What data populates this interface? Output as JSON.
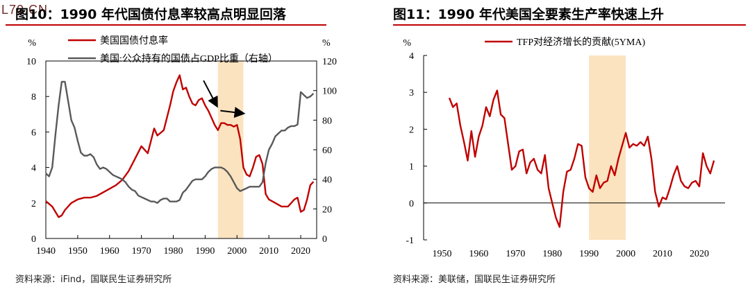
{
  "watermark": "L70.CN",
  "left_panel": {
    "title": "图10：1990 年代国债付息率较高点明显回落",
    "source": "资料来源：iFind，国联民生证券研究所"
  },
  "right_panel": {
    "title": "图11：1990 年代美国全要素生产率快速上升",
    "source": "资料来源：美联储，国联民生证券研究所"
  },
  "colors": {
    "red": "#c00000",
    "gray": "#595959",
    "band": "#fbe3c0",
    "rule": "#c00000"
  },
  "chart_data": [
    {
      "type": "line",
      "title": "",
      "x_range": [
        1940,
        2025
      ],
      "x_ticks": [
        "1940",
        "1950",
        "1960",
        "1970",
        "1980",
        "1990",
        "2000",
        "2010",
        "2020"
      ],
      "y_left_label": "%",
      "y_left_range": [
        0,
        10
      ],
      "y_left_ticks": [
        "0",
        "2",
        "4",
        "6",
        "8",
        "10"
      ],
      "y_right_label": "%",
      "y_right_range": [
        0,
        120
      ],
      "y_right_ticks": [
        "0",
        "20",
        "40",
        "60",
        "80",
        "100",
        "120"
      ],
      "highlight_range": [
        1994,
        2002
      ],
      "legend_position": "top-center",
      "series": [
        {
          "name": "美国国债付息率",
          "axis": "left",
          "color": "#c00000",
          "x": [
            1940,
            1942,
            1944,
            1945,
            1946,
            1948,
            1950,
            1952,
            1954,
            1956,
            1958,
            1960,
            1962,
            1964,
            1966,
            1968,
            1970,
            1972,
            1974,
            1975,
            1977,
            1979,
            1980,
            1981,
            1982,
            1983,
            1984,
            1985,
            1986,
            1987,
            1988,
            1989,
            1990,
            1991,
            1992,
            1993,
            1994,
            1995,
            1996,
            1997,
            1998,
            1999,
            2000,
            2001,
            2002,
            2003,
            2004,
            2005,
            2006,
            2007,
            2008,
            2009,
            2010,
            2012,
            2014,
            2016,
            2018,
            2019,
            2020,
            2021,
            2022,
            2023,
            2024
          ],
          "y": [
            2.1,
            1.8,
            1.2,
            1.3,
            1.6,
            2.0,
            2.2,
            2.3,
            2.3,
            2.4,
            2.6,
            2.8,
            3.0,
            3.3,
            3.8,
            4.5,
            5.2,
            4.8,
            6.2,
            5.8,
            6.1,
            7.5,
            8.3,
            8.8,
            9.2,
            8.4,
            8.5,
            8.0,
            7.6,
            7.5,
            7.8,
            7.9,
            7.5,
            7.2,
            6.8,
            6.4,
            6.1,
            6.5,
            6.5,
            6.4,
            6.4,
            6.3,
            6.4,
            5.6,
            4.0,
            3.6,
            3.5,
            4.0,
            4.6,
            4.7,
            4.2,
            2.5,
            2.2,
            2.0,
            1.8,
            1.8,
            2.2,
            2.3,
            1.5,
            1.6,
            2.2,
            3.0,
            3.2
          ]
        },
        {
          "name": "美国:公众持有的国债占GDP比重（右轴）",
          "axis": "right",
          "color": "#595959",
          "x": [
            1940,
            1941,
            1942,
            1943,
            1944,
            1945,
            1946,
            1947,
            1948,
            1949,
            1950,
            1951,
            1952,
            1953,
            1954,
            1955,
            1956,
            1957,
            1958,
            1959,
            1960,
            1961,
            1962,
            1963,
            1964,
            1965,
            1966,
            1967,
            1968,
            1969,
            1970,
            1971,
            1972,
            1973,
            1974,
            1975,
            1976,
            1977,
            1978,
            1979,
            1980,
            1981,
            1982,
            1983,
            1984,
            1985,
            1986,
            1987,
            1988,
            1989,
            1990,
            1991,
            1992,
            1993,
            1994,
            1995,
            1996,
            1997,
            1998,
            1999,
            2000,
            2001,
            2002,
            2003,
            2004,
            2005,
            2006,
            2007,
            2008,
            2009,
            2010,
            2011,
            2012,
            2013,
            2014,
            2015,
            2016,
            2017,
            2018,
            2019,
            2020,
            2021,
            2022,
            2023,
            2024
          ],
          "y": [
            44,
            42,
            48,
            70,
            90,
            106,
            106,
            93,
            80,
            75,
            66,
            58,
            56,
            56,
            57,
            55,
            50,
            47,
            48,
            47,
            45,
            43,
            42,
            41,
            40,
            38,
            35,
            33,
            32,
            29,
            28,
            27,
            26,
            25,
            25,
            24,
            26,
            27,
            27,
            25,
            25,
            25,
            26,
            31,
            33,
            36,
            39,
            40,
            40,
            40,
            42,
            45,
            47,
            48,
            48,
            48,
            47,
            45,
            42,
            38,
            34,
            32,
            33,
            34,
            35,
            35,
            35,
            35,
            38,
            51,
            60,
            64,
            69,
            71,
            73,
            73,
            75,
            76,
            76,
            77,
            99,
            97,
            95,
            96,
            98
          ]
        }
      ]
    },
    {
      "type": "line",
      "title": "",
      "x_range": [
        1945,
        2027
      ],
      "x_ticks": [
        "1950",
        "1960",
        "1970",
        "1980",
        "1990",
        "2000",
        "2010",
        "2020"
      ],
      "y_label": "%",
      "y_range": [
        -1,
        4
      ],
      "y_ticks": [
        "-1",
        "0",
        "1",
        "2",
        "3",
        "4"
      ],
      "highlight_range": [
        1990,
        2000
      ],
      "legend_position": "top-center",
      "series": [
        {
          "name": "TFP对经济增长的贡献(5YMA)",
          "axis": "left",
          "color": "#c00000",
          "x": [
            1952,
            1953,
            1954,
            1955,
            1956,
            1957,
            1958,
            1959,
            1960,
            1961,
            1962,
            1963,
            1964,
            1965,
            1966,
            1967,
            1968,
            1969,
            1970,
            1971,
            1972,
            1973,
            1974,
            1975,
            1976,
            1977,
            1978,
            1979,
            1980,
            1981,
            1982,
            1983,
            1984,
            1985,
            1986,
            1987,
            1988,
            1989,
            1990,
            1991,
            1992,
            1993,
            1994,
            1995,
            1996,
            1997,
            1998,
            1999,
            2000,
            2001,
            2002,
            2003,
            2004,
            2005,
            2006,
            2007,
            2008,
            2009,
            2010,
            2011,
            2012,
            2013,
            2014,
            2015,
            2016,
            2017,
            2018,
            2019,
            2020,
            2021,
            2022,
            2023,
            2024
          ],
          "y": [
            2.85,
            2.6,
            2.7,
            2.1,
            1.65,
            1.15,
            1.95,
            1.25,
            1.8,
            2.1,
            2.6,
            2.35,
            2.8,
            3.05,
            2.4,
            2.3,
            1.6,
            0.9,
            1.0,
            1.4,
            1.45,
            0.8,
            1.1,
            1.2,
            0.9,
            0.8,
            1.3,
            0.4,
            0.0,
            -0.4,
            -0.65,
            0.3,
            0.85,
            0.9,
            1.2,
            1.6,
            1.55,
            0.7,
            0.4,
            0.3,
            0.75,
            0.4,
            0.55,
            0.6,
            1.0,
            0.75,
            1.2,
            1.55,
            1.9,
            1.5,
            1.6,
            1.55,
            1.65,
            1.55,
            1.8,
            1.2,
            0.3,
            -0.1,
            0.15,
            0.1,
            0.4,
            0.75,
            1.0,
            0.6,
            0.45,
            0.4,
            0.55,
            0.6,
            0.45,
            1.35,
            1.0,
            0.8,
            1.15
          ]
        }
      ]
    }
  ]
}
